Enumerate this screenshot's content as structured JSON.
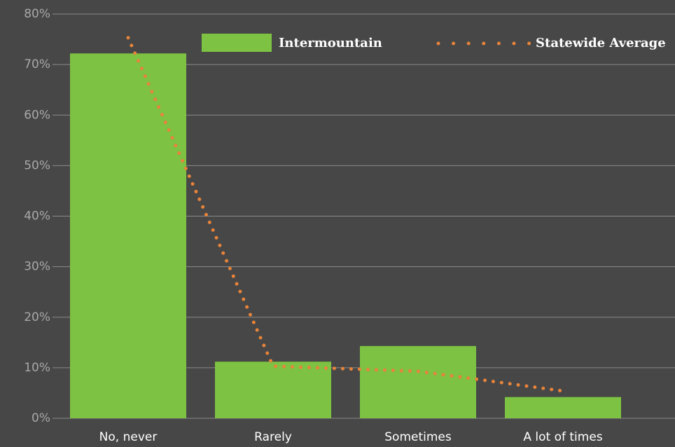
{
  "chart_data": {
    "type": "bar",
    "categories": [
      "No, never",
      "Rarely",
      "Sometimes",
      "A lot of times"
    ],
    "series": [
      {
        "name": "Intermountain",
        "type": "bar",
        "color": "#7dc242",
        "values": [
          72.2,
          11.2,
          14.3,
          4.2
        ]
      },
      {
        "name": "Statewide Average",
        "type": "line",
        "color": "#e8833a",
        "values": [
          75.3,
          10.3,
          9.3,
          5.4
        ]
      }
    ],
    "ylim": [
      0,
      80
    ],
    "yticks": [
      {
        "value": 0,
        "label": "0%"
      },
      {
        "value": 10,
        "label": "10%"
      },
      {
        "value": 20,
        "label": "20%"
      },
      {
        "value": 30,
        "label": "30%"
      },
      {
        "value": 40,
        "label": "40%"
      },
      {
        "value": 50,
        "label": "50%"
      },
      {
        "value": 60,
        "label": "60%"
      },
      {
        "value": 70,
        "label": "70%"
      },
      {
        "value": 80,
        "label": "80%"
      }
    ],
    "grid": true,
    "legend": "top-right"
  }
}
